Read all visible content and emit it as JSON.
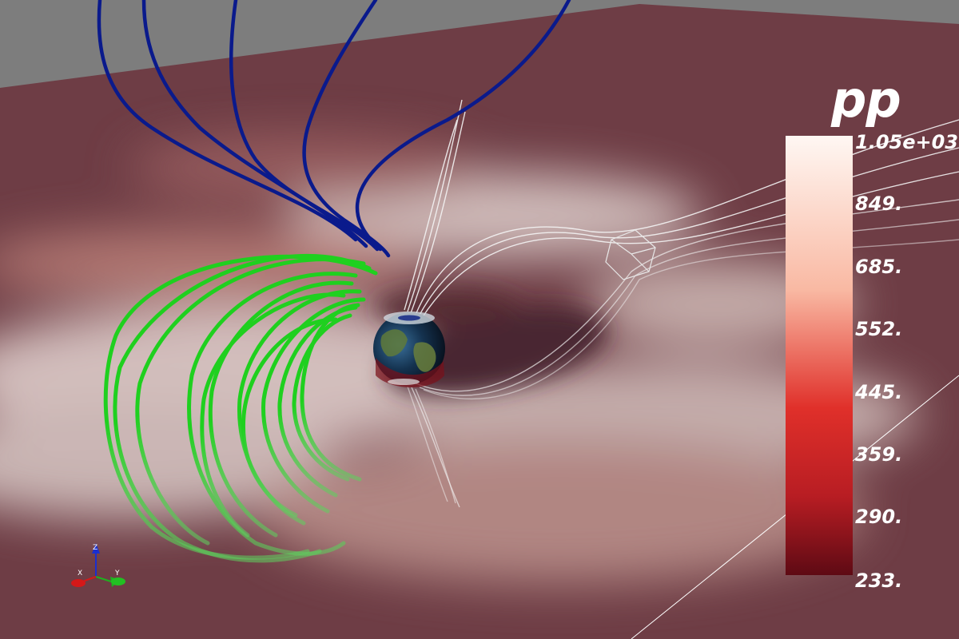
{
  "colorbar": {
    "title": "pp",
    "ticks": [
      {
        "label": "1.05e+03",
        "value": 1050
      },
      {
        "label": "849.",
        "value": 849
      },
      {
        "label": "685.",
        "value": 685
      },
      {
        "label": "552.",
        "value": 552
      },
      {
        "label": "445.",
        "value": 445
      },
      {
        "label": "359.",
        "value": 359
      },
      {
        "label": "290.",
        "value": 290
      },
      {
        "label": "233.",
        "value": 233
      }
    ],
    "range": [
      233,
      1050
    ],
    "scale": "log",
    "colors": {
      "low": "#5e0a14",
      "mid": "#e0302a",
      "high": "#fff7f3"
    }
  },
  "axes_triad": {
    "x": "X",
    "y": "Y",
    "z": "Z"
  },
  "scene_colors": {
    "background": "#7d7d7d",
    "slice": "#6e3d45",
    "open_field_lines": "#0a1a8c",
    "closed_field_lines": "#1fd01f",
    "tail_field_lines": "#ffffff"
  }
}
